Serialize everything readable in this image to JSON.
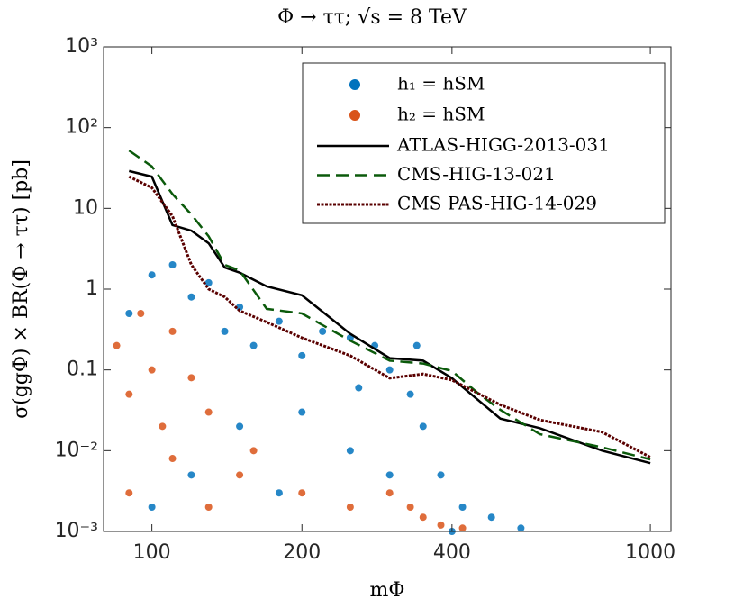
{
  "chart_data": {
    "type": "scatter",
    "title": "Φ → ττ; √s = 8 TeV",
    "x_label": "mΦ",
    "y_label": "σ(ggΦ) × BR(Φ → ττ) [pb]",
    "xscale": "log",
    "yscale": "log",
    "xlim": [
      80,
      1100
    ],
    "ylim": [
      0.001,
      1000
    ],
    "xticks": [
      100,
      200,
      400,
      1000
    ],
    "yticks": [
      {
        "value": 1000,
        "label": "10³"
      },
      {
        "value": 100,
        "label": "10²"
      },
      10,
      1,
      0.1,
      {
        "value": 0.01,
        "label": "10⁻²"
      },
      {
        "value": 0.001,
        "label": "10⁻³"
      }
    ],
    "legend": "upper right",
    "series": [
      {
        "name": "h₁ = hSM",
        "type": "scatter",
        "color": "#0072bd",
        "x": [
          90,
          100,
          110,
          120,
          130,
          140,
          150,
          160,
          180,
          200,
          220,
          250,
          280,
          300,
          340,
          150,
          200,
          250,
          300,
          350,
          380,
          420,
          480,
          550,
          120,
          180,
          100,
          400,
          330,
          260
        ],
        "values": [
          0.5,
          1.5,
          2,
          0.8,
          1.2,
          0.3,
          0.6,
          0.2,
          0.4,
          0.15,
          0.3,
          0.25,
          0.2,
          0.1,
          0.2,
          0.02,
          0.03,
          0.01,
          0.005,
          0.02,
          0.005,
          0.002,
          0.0015,
          0.0011,
          0.005,
          0.003,
          0.002,
          0.001,
          0.05,
          0.06
        ]
      },
      {
        "name": "h₂ = hSM",
        "type": "scatter",
        "color": "#d95319",
        "x": [
          85,
          90,
          95,
          100,
          105,
          110,
          120,
          130,
          90,
          110,
          150,
          200,
          250,
          300,
          330,
          350,
          380,
          420,
          160,
          130
        ],
        "values": [
          0.2,
          0.05,
          0.5,
          0.1,
          0.02,
          0.3,
          0.08,
          0.03,
          0.003,
          0.008,
          0.005,
          0.003,
          0.002,
          0.003,
          0.002,
          0.0015,
          0.0012,
          0.0011,
          0.01,
          0.002
        ]
      },
      {
        "name": "ATLAS-HIGG-2013-031",
        "type": "line",
        "color": "#000000",
        "dash": "solid",
        "x": [
          90,
          100,
          110,
          120,
          130,
          140,
          150,
          170,
          200,
          250,
          300,
          350,
          400,
          500,
          600,
          800,
          1000
        ],
        "values": [
          29,
          24.7,
          6.2,
          5.3,
          3.7,
          1.85,
          1.6,
          1.08,
          0.84,
          0.28,
          0.14,
          0.13,
          0.079,
          0.025,
          0.019,
          0.01,
          0.007
        ]
      },
      {
        "name": "CMS-HIG-13-021",
        "type": "line",
        "color": "#0b5a0b",
        "dash": "dashed",
        "x": [
          90,
          100,
          110,
          120,
          130,
          140,
          150,
          170,
          200,
          250,
          300,
          350,
          400,
          450,
          500,
          600,
          800,
          1000
        ],
        "values": [
          52,
          33,
          15,
          8.4,
          4.5,
          2.0,
          1.7,
          0.57,
          0.5,
          0.23,
          0.13,
          0.12,
          0.097,
          0.052,
          0.032,
          0.016,
          0.011,
          0.0078
        ]
      },
      {
        "name": "CMS PAS-HIG-14-029",
        "type": "line",
        "color": "#5a0000",
        "dash": "dotted",
        "x": [
          90,
          100,
          110,
          120,
          130,
          140,
          150,
          170,
          200,
          250,
          300,
          350,
          400,
          500,
          600,
          800,
          1000
        ],
        "values": [
          24.7,
          18,
          8,
          2.0,
          1.0,
          0.8,
          0.54,
          0.39,
          0.25,
          0.15,
          0.079,
          0.089,
          0.075,
          0.037,
          0.024,
          0.017,
          0.0083
        ]
      }
    ]
  }
}
